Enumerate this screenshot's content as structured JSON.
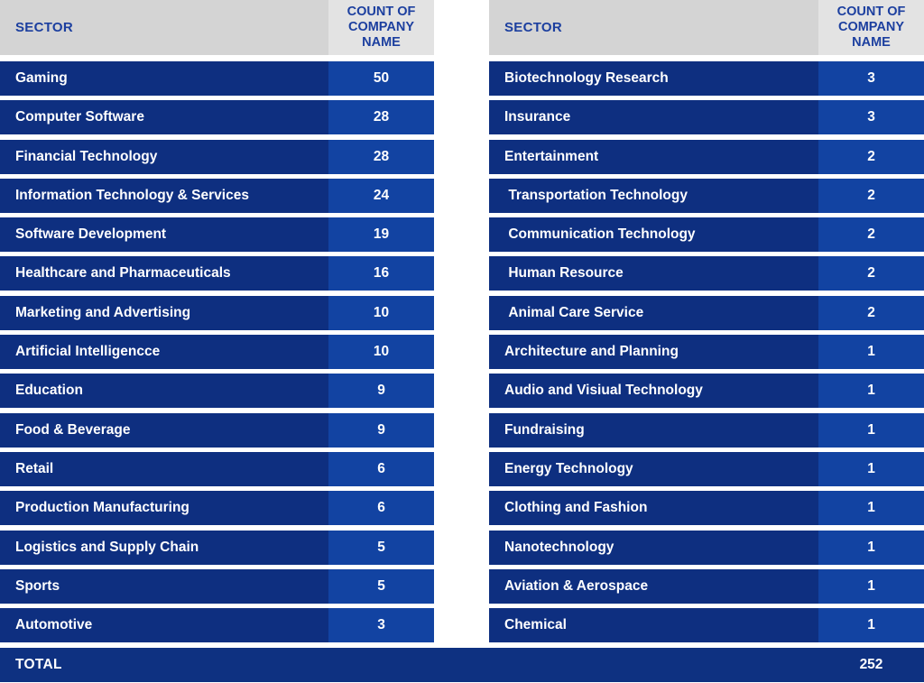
{
  "colors": {
    "header_sector_bg": "#d4d4d4",
    "header_count_bg": "#e3e3e3",
    "header_text": "#1c3f9f",
    "row_sector_bg": "#0e2f80",
    "row_count_bg": "#1243a2",
    "total_bg": "#0e3181",
    "row_text": "#ffffff",
    "page_bg": "#ffffff"
  },
  "tables": [
    {
      "header": {
        "sector": "SECTOR",
        "count": "COUNT OF COMPANY NAME"
      },
      "rows": [
        {
          "sector": "Gaming",
          "count": "50"
        },
        {
          "sector": "Computer Software",
          "count": "28"
        },
        {
          "sector": "Financial Technology",
          "count": "28"
        },
        {
          "sector": "Information Technology & Services",
          "count": "24"
        },
        {
          "sector": "Software Development",
          "count": "19"
        },
        {
          "sector": "Healthcare and Pharmaceuticals",
          "count": "16"
        },
        {
          "sector": "Marketing and Advertising",
          "count": "10"
        },
        {
          "sector": "Artificial Intelligencce",
          "count": "10"
        },
        {
          "sector": "Education",
          "count": "9"
        },
        {
          "sector": "Food & Beverage",
          "count": "9"
        },
        {
          "sector": "Retail",
          "count": "6"
        },
        {
          "sector": "Production Manufacturing",
          "count": "6"
        },
        {
          "sector": "Logistics and Supply Chain",
          "count": "5"
        },
        {
          "sector": "Sports",
          "count": "5"
        },
        {
          "sector": "Automotive",
          "count": "3"
        }
      ]
    },
    {
      "header": {
        "sector": "SECTOR",
        "count": "COUNT OF COMPANY NAME"
      },
      "rows": [
        {
          "sector": "Biotechnology Research",
          "count": "3"
        },
        {
          "sector": "Insurance",
          "count": "3"
        },
        {
          "sector": "Entertainment",
          "count": "2"
        },
        {
          "sector": " Transportation Technology",
          "count": "2"
        },
        {
          "sector": " Communication Technology",
          "count": "2"
        },
        {
          "sector": " Human Resource",
          "count": "2"
        },
        {
          "sector": " Animal Care Service",
          "count": "2"
        },
        {
          "sector": "Architecture and Planning",
          "count": "1"
        },
        {
          "sector": "Audio and Visiual Technology",
          "count": "1"
        },
        {
          "sector": "Fundraising",
          "count": "1"
        },
        {
          "sector": "Energy Technology",
          "count": "1"
        },
        {
          "sector": "Clothing and Fashion",
          "count": "1"
        },
        {
          "sector": "Nanotechnology",
          "count": "1"
        },
        {
          "sector": "Aviation & Aerospace",
          "count": "1"
        },
        {
          "sector": "Chemical",
          "count": "1"
        }
      ]
    }
  ],
  "total": {
    "label": "TOTAL",
    "value": "252"
  },
  "chart_data": {
    "type": "table",
    "columns": [
      "SECTOR",
      "COUNT OF COMPANY NAME"
    ],
    "rows": [
      [
        "Gaming",
        50
      ],
      [
        "Computer Software",
        28
      ],
      [
        "Financial Technology",
        28
      ],
      [
        "Information Technology & Services",
        24
      ],
      [
        "Software Development",
        19
      ],
      [
        "Healthcare and Pharmaceuticals",
        16
      ],
      [
        "Marketing and Advertising",
        10
      ],
      [
        "Artificial Intelligencce",
        10
      ],
      [
        "Education",
        9
      ],
      [
        "Food & Beverage",
        9
      ],
      [
        "Retail",
        6
      ],
      [
        "Production Manufacturing",
        6
      ],
      [
        "Logistics and Supply Chain",
        5
      ],
      [
        "Sports",
        5
      ],
      [
        "Automotive",
        3
      ],
      [
        "Biotechnology Research",
        3
      ],
      [
        "Insurance",
        3
      ],
      [
        "Entertainment",
        2
      ],
      [
        "Transportation Technology",
        2
      ],
      [
        "Communication Technology",
        2
      ],
      [
        "Human Resource",
        2
      ],
      [
        "Animal Care Service",
        2
      ],
      [
        "Architecture and Planning",
        1
      ],
      [
        "Audio and Visiual Technology",
        1
      ],
      [
        "Fundraising",
        1
      ],
      [
        "Energy Technology",
        1
      ],
      [
        "Clothing and Fashion",
        1
      ],
      [
        "Nanotechnology",
        1
      ],
      [
        "Aviation & Aerospace",
        1
      ],
      [
        "Chemical",
        1
      ]
    ],
    "total": [
      "TOTAL",
      252
    ],
    "layout": "two side-by-side tables, left rows 1-15, right rows 16-30, shared TOTAL bar at bottom"
  }
}
